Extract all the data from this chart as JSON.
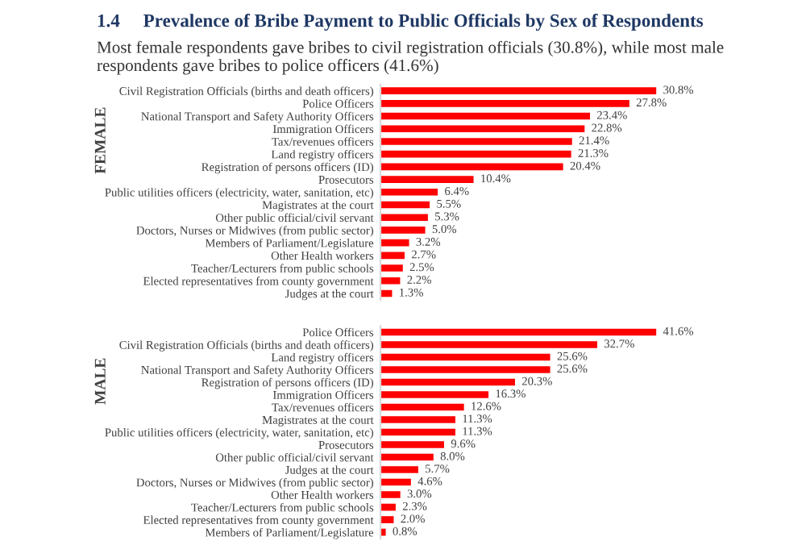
{
  "chart_data": [
    {
      "type": "bar",
      "orientation": "horizontal",
      "title": "1.4     Prevalence of Bribe Payment to Public Officials by Sex of Respondents",
      "subtitle": "Most female respondents gave bribes to civil registration officials (30.8%), while most male respondents gave bribes to police officers (41.6%)",
      "ylabel": "FEMALE",
      "categories": [
        "Civil Registration Officials (births and death officers)",
        "Police Officers",
        "National Transport and Safety Authority Officers",
        "Immigration Officers",
        "Tax/revenues officers",
        "Land registry officers",
        "Registration of persons officers (ID)",
        "Prosecutors",
        "Public utilities officers (electricity, water, sanitation, etc)",
        "Magistrates at the court",
        "Other public official/civil servant",
        "Doctors, Nurses or Midwives (from public sector)",
        "Members of Parliament/Legislature",
        "Other Health workers",
        "Teacher/Lecturers from public schools",
        "Elected representatives from county government",
        "Judges at the court"
      ],
      "values": [
        30.8,
        27.8,
        23.4,
        22.8,
        21.4,
        21.3,
        20.4,
        10.4,
        6.4,
        5.5,
        5.3,
        5.0,
        3.2,
        2.7,
        2.5,
        2.2,
        1.3
      ],
      "value_labels": [
        "30.8%",
        "27.8%",
        "23.4%",
        "22.8%",
        "21.4%",
        "21.3%",
        "20.4%",
        "10.4%",
        "6.4%",
        "5.5%",
        "5.3%",
        "5.0%",
        "3.2%",
        "2.7%",
        "2.5%",
        "2.2%",
        "1.3%"
      ],
      "color": "#ff0000",
      "tick_labels": "y"
    },
    {
      "type": "bar",
      "orientation": "horizontal",
      "ylabel": "MALE",
      "categories": [
        "Police Officers",
        "Civil Registration Officials (births and death officers)",
        "Land registry officers",
        "National Transport and Safety Authority Officers",
        "Registration of persons officers (ID)",
        "Immigration Officers",
        "Tax/revenues officers",
        "Magistrates at the court",
        "Public utilities officers (electricity, water, sanitation, etc)",
        "Prosecutors",
        "Other public official/civil servant",
        "Judges at the court",
        "Doctors, Nurses or Midwives (from public sector)",
        "Other Health workers",
        "Teacher/Lecturers from public schools",
        "Elected representatives from county government",
        "Members of Parliament/Legislature"
      ],
      "values": [
        41.6,
        32.7,
        25.6,
        25.6,
        20.3,
        16.3,
        12.6,
        11.3,
        11.3,
        9.6,
        8.0,
        5.7,
        4.6,
        3.0,
        2.3,
        2.0,
        0.8
      ],
      "value_labels": [
        "41.6%",
        "32.7%",
        "25.6%",
        "25.6%",
        "20.3%",
        "16.3%",
        "12.6%",
        "11.3%",
        "11.3%",
        "9.6%",
        "8.0%",
        "5.7%",
        "4.6%",
        "3.0%",
        "2.3%",
        "2.0%",
        "0.8%"
      ],
      "color": "#ff0000",
      "tick_labels": "y"
    }
  ]
}
